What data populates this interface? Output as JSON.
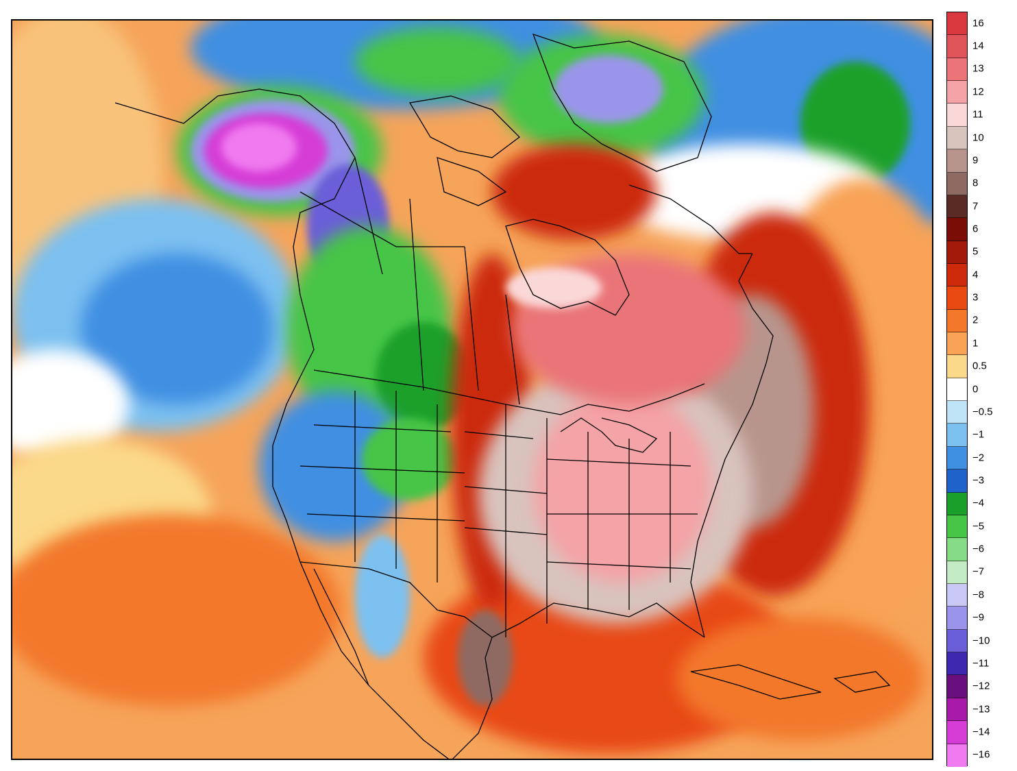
{
  "legend": {
    "levels": [
      {
        "label": "16",
        "color": "#d8383e"
      },
      {
        "label": "14",
        "color": "#e0555a"
      },
      {
        "label": "13",
        "color": "#ea7478"
      },
      {
        "label": "12",
        "color": "#f4a3a6"
      },
      {
        "label": "11",
        "color": "#fbd8d8"
      },
      {
        "label": "10",
        "color": "#d9c3bd"
      },
      {
        "label": "9",
        "color": "#b8958c"
      },
      {
        "label": "8",
        "color": "#8f6a62"
      },
      {
        "label": "7",
        "color": "#5a2b25"
      },
      {
        "label": "6",
        "color": "#7a0d06"
      },
      {
        "label": "5",
        "color": "#a31a0a"
      },
      {
        "label": "4",
        "color": "#cc2a0a"
      },
      {
        "label": "3",
        "color": "#e84a12"
      },
      {
        "label": "2",
        "color": "#f3782a"
      },
      {
        "label": "1",
        "color": "#f8a356"
      },
      {
        "label": "0.5",
        "color": "#fbd98a"
      },
      {
        "label": "0",
        "color": "#ffffff"
      },
      {
        "label": "−0.5",
        "color": "#bfe4f8"
      },
      {
        "label": "−1",
        "color": "#7cc0f0"
      },
      {
        "label": "−2",
        "color": "#3f8fe2"
      },
      {
        "label": "−3",
        "color": "#1f62c9"
      },
      {
        "label": "−4",
        "color": "#1aa02a"
      },
      {
        "label": "−5",
        "color": "#46c546"
      },
      {
        "label": "−6",
        "color": "#86dc86"
      },
      {
        "label": "−7",
        "color": "#c4ecc4"
      },
      {
        "label": "−8",
        "color": "#c9c8f6"
      },
      {
        "label": "−9",
        "color": "#9a95ea"
      },
      {
        "label": "−10",
        "color": "#6a5fd8"
      },
      {
        "label": "−11",
        "color": "#3f28b0"
      },
      {
        "label": "−12",
        "color": "#6a0f7e"
      },
      {
        "label": "−13",
        "color": "#a81aa8"
      },
      {
        "label": "−14",
        "color": "#d63cd6"
      },
      {
        "label": "−16",
        "color": "#f07af0"
      }
    ]
  },
  "map": {
    "ocean_color": "#f6a45a",
    "boundary_color": "#000000"
  }
}
